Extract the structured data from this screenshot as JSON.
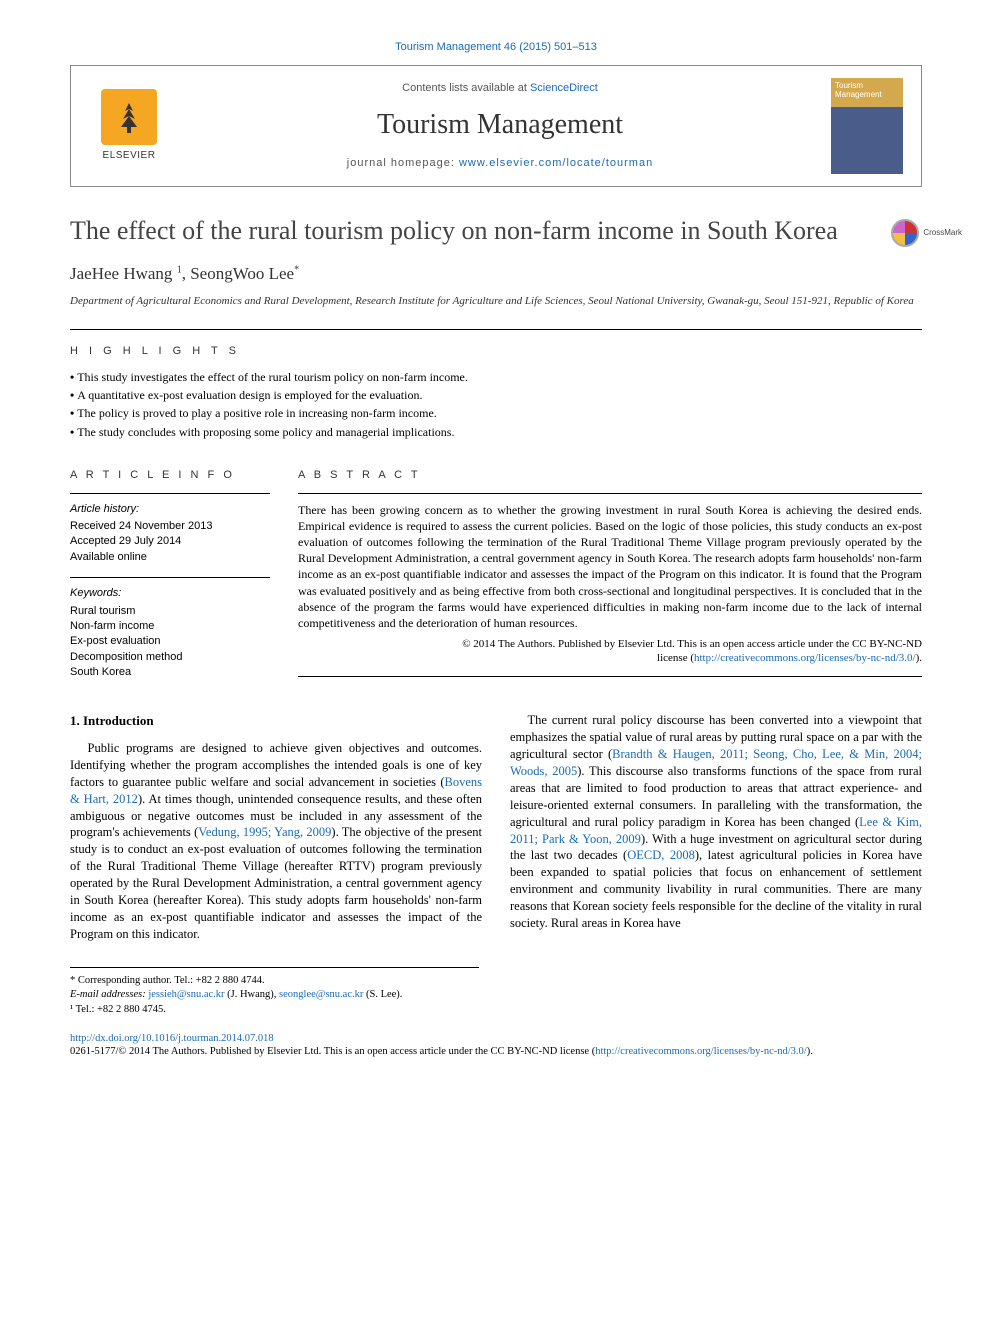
{
  "citation": "Tourism Management 46 (2015) 501–513",
  "header": {
    "contents_prefix": "Contents lists available at ",
    "contents_link": "ScienceDirect",
    "journal_title": "Tourism Management",
    "homepage_prefix": "journal homepage: ",
    "homepage_url": "www.elsevier.com/locate/tourman",
    "publisher": "ELSEVIER",
    "cover_text": "Tourism Management"
  },
  "title": "The effect of the rural tourism policy on non-farm income in South Korea",
  "crossmark_label": "CrossMark",
  "authors_html": "JaeHee Hwang <sup>1</sup>, SeongWoo Lee<sup>*</sup>",
  "affiliation": "Department of Agricultural Economics and Rural Development, Research Institute for Agriculture and Life Sciences, Seoul National University, Gwanak-gu, Seoul 151-921, Republic of Korea",
  "highlights_label": "H I G H L I G H T S",
  "highlights": [
    "This study investigates the effect of the rural tourism policy on non-farm income.",
    "A quantitative ex-post evaluation design is employed for the evaluation.",
    "The policy is proved to play a positive role in increasing non-farm income.",
    "The study concludes with proposing some policy and managerial implications."
  ],
  "article_info_label": "A R T I C L E   I N F O",
  "abstract_label": "A B S T R A C T",
  "history": {
    "heading": "Article history:",
    "received": "Received 24 November 2013",
    "accepted": "Accepted 29 July 2014",
    "available": "Available online"
  },
  "keywords": {
    "heading": "Keywords:",
    "items": [
      "Rural tourism",
      "Non-farm income",
      "Ex-post evaluation",
      "Decomposition method",
      "South Korea"
    ]
  },
  "abstract": "There has been growing concern as to whether the growing investment in rural South Korea is achieving the desired ends. Empirical evidence is required to assess the current policies. Based on the logic of those policies, this study conducts an ex-post evaluation of outcomes following the termination of the Rural Traditional Theme Village program previously operated by the Rural Development Administration, a central government agency in South Korea. The research adopts farm households' non-farm income as an ex-post quantifiable indicator and assesses the impact of the Program on this indicator. It is found that the Program was evaluated positively and as being effective from both cross-sectional and longitudinal perspectives. It is concluded that in the absence of the program the farms would have experienced difficulties in making non-farm income due to the lack of internal competitiveness and the deterioration of human resources.",
  "copyright": {
    "line1": "© 2014 The Authors. Published by Elsevier Ltd. This is an open access article under the CC BY-NC-ND",
    "line2_prefix": "license (",
    "line2_url": "http://creativecommons.org/licenses/by-nc-nd/3.0/",
    "line2_suffix": ")."
  },
  "body": {
    "section_heading": "1. Introduction",
    "para1_a": "Public programs are designed to achieve given objectives and outcomes. Identifying whether the program accomplishes the intended goals is one of key factors to guarantee public welfare and social advancement in societies (",
    "cite1": "Bovens & Hart, 2012",
    "para1_b": "). At times though, unintended consequence results, and these often ambiguous or negative outcomes must be included in any assessment of the program's achievements (",
    "cite2": "Vedung, 1995; Yang, 2009",
    "para1_c": "). The objective of the present study is to conduct an ex-post evaluation of outcomes following the termination of the Rural Traditional Theme Village (hereafter RTTV) program previously operated by the Rural Development Administration, a central government agency in ",
    "para1_d": "South Korea (hereafter Korea). This study adopts farm households' non-farm income as an ex-post quantifiable indicator and assesses the impact of the Program on this indicator.",
    "para2_a": "The current rural policy discourse has been converted into a viewpoint that emphasizes the spatial value of rural areas by putting rural space on a par with the agricultural sector (",
    "cite3": "Brandth & Haugen, 2011; Seong, Cho, Lee, & Min, 2004; Woods, 2005",
    "para2_b": "). This discourse also transforms functions of the space from rural areas that are limited to food production to areas that attract experience- and leisure-oriented external consumers. In paralleling with the transformation, the agricultural and rural policy paradigm in Korea has been changed (",
    "cite4": "Lee & Kim, 2011; Park & Yoon, 2009",
    "para2_c": "). With a huge investment on agricultural sector during the last two decades (",
    "cite5": "OECD, 2008",
    "para2_d": "), latest agricultural policies in Korea have been expanded to spatial policies that focus on enhancement of settlement environment and community livability in rural communities. There are many reasons that Korean society feels responsible for the decline of the vitality in rural society. Rural areas in Korea have"
  },
  "footnotes": {
    "corresponding": "* Corresponding author. Tel.: +82 2 880 4744.",
    "email_label": "E-mail addresses: ",
    "email1": "jessieh@snu.ac.kr",
    "email1_who": " (J. Hwang), ",
    "email2": "seonglee@snu.ac.kr",
    "email2_who": " (S. Lee).",
    "tel1": "¹ Tel.: +82 2 880 4745."
  },
  "bottom": {
    "doi": "http://dx.doi.org/10.1016/j.tourman.2014.07.018",
    "issn_line_a": "0261-5177/© 2014 The Authors. Published by Elsevier Ltd. This is an open access article under the CC BY-NC-ND license (",
    "issn_url": "http://creativecommons.org/licenses/by-nc-nd/3.0/",
    "issn_line_b": ")."
  },
  "colors": {
    "link": "#1a6bb5",
    "text": "#000000",
    "elsevier_orange": "#f5a623"
  }
}
